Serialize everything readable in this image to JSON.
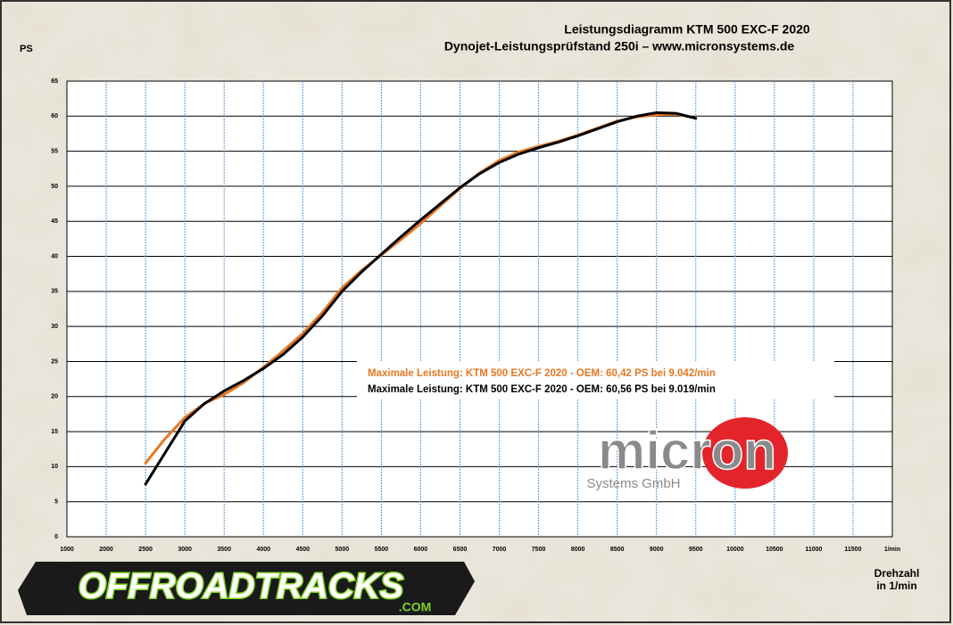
{
  "chart_data": {
    "type": "line",
    "title": "Leistungsdiagramm KTM 500 EXC-F 2020",
    "subtitle": "Dynojet-Leistungsprüfstand 250i – www.micronsystems.de",
    "y_label": "PS",
    "x_label": [
      "Drehzahl",
      "in 1/min"
    ],
    "x_axis_first_label": "1000",
    "x_axis_unit_label": "1/min",
    "x": [
      2500,
      2750,
      3000,
      3250,
      3500,
      3750,
      4000,
      4250,
      4500,
      4750,
      5000,
      5250,
      5500,
      5750,
      6000,
      6250,
      6500,
      6750,
      7000,
      7250,
      7500,
      7750,
      8000,
      8250,
      8500,
      8750,
      9000,
      9250,
      9500
    ],
    "series": [
      {
        "name": "Maximale Leistung: KTM 500  EXC-F 2020  - OEM: 60,42  PS bei 9.042/min",
        "color": "#e87722",
        "values": [
          10.5,
          14,
          17,
          19,
          20.3,
          22,
          24.2,
          26.5,
          29,
          32,
          35.5,
          38,
          40.2,
          42.4,
          44.7,
          47.2,
          49.7,
          51.9,
          53.7,
          54.9,
          55.7,
          56.4,
          57.3,
          58.3,
          59.3,
          59.9,
          60.2,
          60.3,
          59.7
        ]
      },
      {
        "name": "Maximale Leistung: KTM 500  EXC-F 2020  - OEM: 60,56  PS bei 9.019/min",
        "color": "#000000",
        "values": [
          7.5,
          12,
          16.5,
          19,
          20.8,
          22.3,
          24,
          26,
          28.5,
          31.5,
          35,
          37.8,
          40.3,
          42.8,
          45.2,
          47.5,
          49.8,
          51.8,
          53.4,
          54.6,
          55.5,
          56.3,
          57.2,
          58.2,
          59.2,
          60,
          60.5,
          60.4,
          59.7
        ]
      }
    ],
    "xlim": [
      1500,
      12000
    ],
    "xticks": [
      2000,
      2500,
      3000,
      3500,
      4000,
      4500,
      5000,
      5500,
      6000,
      6500,
      7000,
      7500,
      8000,
      8500,
      9000,
      9500,
      10000,
      10500,
      11000,
      11500
    ],
    "ylim": [
      0,
      65
    ],
    "yticks": [
      0,
      5,
      10,
      15,
      20,
      25,
      30,
      35,
      40,
      45,
      50,
      55,
      60,
      65
    ],
    "grid": true,
    "x_grid_color": "#5b9bd5",
    "y_grid_color": "#000000",
    "logos": {
      "micron": "micron",
      "micron_sub": "Systems GmbH",
      "offroad": "OFFROADTRACKS",
      "offroad_sub": ".COM"
    }
  }
}
